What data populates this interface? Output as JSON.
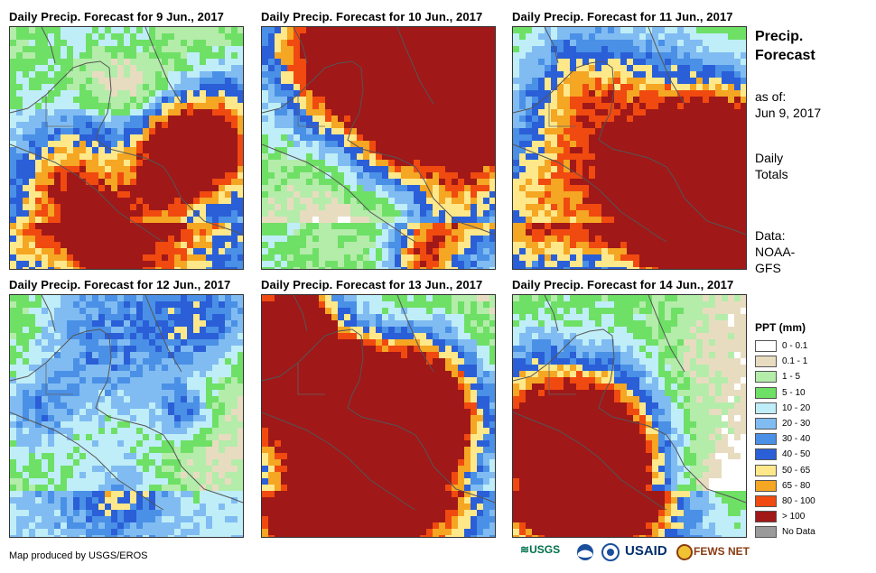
{
  "panels": [
    {
      "title": "Daily Precip. Forecast for 9 Jun., 2017"
    },
    {
      "title": "Daily Precip. Forecast for 10 Jun., 2017"
    },
    {
      "title": "Daily Precip. Forecast for 11 Jun., 2017"
    },
    {
      "title": "Daily Precip. Forecast for 12 Jun., 2017"
    },
    {
      "title": "Daily Precip. Forecast for 13 Jun., 2017"
    },
    {
      "title": "Daily Precip. Forecast for 14 Jun., 2017"
    }
  ],
  "sidebar": {
    "title_line1": "Precip.",
    "title_line2": "Forecast",
    "asof_line1": "as of:",
    "asof_line2": "Jun 9, 2017",
    "totals_line1": "Daily",
    "totals_line2": "Totals",
    "data_line1": "Data:",
    "data_line2": "NOAA-",
    "data_line3": "GFS"
  },
  "legend": {
    "title": "PPT (mm)",
    "items": [
      {
        "label": "0 - 0.1",
        "color": "#ffffff"
      },
      {
        "label": "0.1 - 1",
        "color": "#e8dcc0"
      },
      {
        "label": "1 - 5",
        "color": "#b4ecaa"
      },
      {
        "label": "5 - 10",
        "color": "#6ee066"
      },
      {
        "label": "10 - 20",
        "color": "#bfeef8"
      },
      {
        "label": "20 - 30",
        "color": "#80bcf2"
      },
      {
        "label": "30 - 40",
        "color": "#4a90e6"
      },
      {
        "label": "40 - 50",
        "color": "#2a5fd8"
      },
      {
        "label": "50 - 65",
        "color": "#ffe88a"
      },
      {
        "label": "65 - 80",
        "color": "#f5a623"
      },
      {
        "label": "80 - 100",
        "color": "#f04a10"
      },
      {
        "label": "> 100",
        "color": "#a01818"
      },
      {
        "label": "No Data",
        "color": "#9a9a9a"
      }
    ]
  },
  "footer": {
    "credit": "Map produced by USGS/EROS",
    "logo_usgs": "USGS",
    "logo_usaid": "USAID",
    "logo_fewsnet": "FEWS NET"
  }
}
